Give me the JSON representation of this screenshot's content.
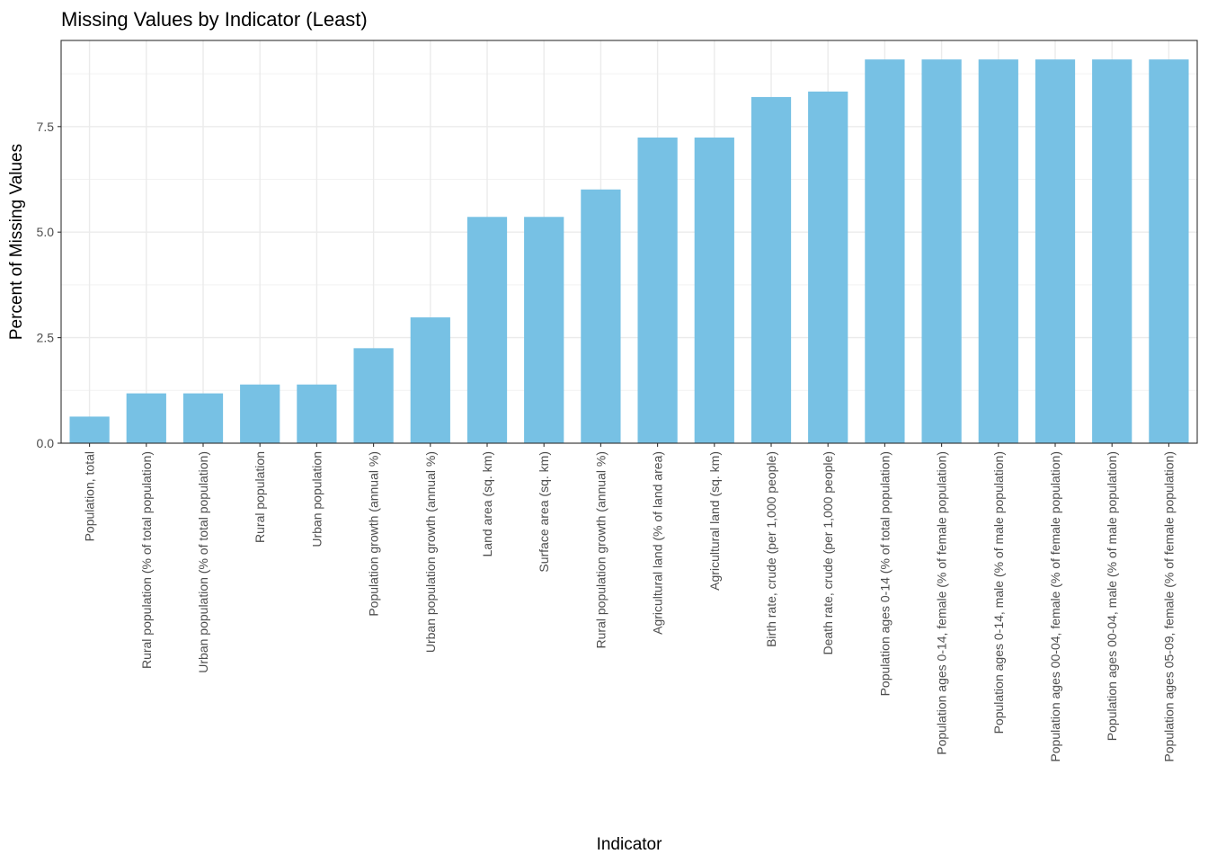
{
  "chart_data": {
    "type": "bar",
    "title": "Missing Values by Indicator (Least)",
    "xlabel": "Indicator",
    "ylabel": "Percent of Missing Values",
    "ylim": [
      0,
      9.54
    ],
    "yticks": [
      0,
      2.5,
      5,
      7.5
    ],
    "ytick_labels": [
      "0.0",
      "2.5",
      "5.0",
      "7.5"
    ],
    "grid": true,
    "legend": "none",
    "bar_color": "#77c1e4",
    "categories": [
      "Population, total",
      "Rural population (% of total population)",
      "Urban population (% of total population)",
      "Rural population",
      "Urban population",
      "Population growth (annual %)",
      "Urban population growth (annual %)",
      "Land area (sq. km)",
      "Surface area (sq. km)",
      "Rural population growth (annual %)",
      "Agricultural land (% of land area)",
      "Agricultural land (sq. km)",
      "Birth rate, crude (per 1,000 people)",
      "Death rate, crude (per 1,000 people)",
      "Population ages 0-14 (% of total population)",
      "Population ages 0-14, female (% of female population)",
      "Population ages 0-14, male (% of male population)",
      "Population ages 00-04, female (% of female population)",
      "Population ages 00-04, male (% of male population)",
      "Population ages 05-09, female (% of female population)"
    ],
    "values": [
      0.63,
      1.18,
      1.18,
      1.39,
      1.39,
      2.25,
      2.98,
      5.36,
      5.36,
      6.01,
      7.24,
      7.24,
      8.2,
      8.33,
      9.09,
      9.09,
      9.09,
      9.09,
      9.09,
      9.09
    ]
  }
}
